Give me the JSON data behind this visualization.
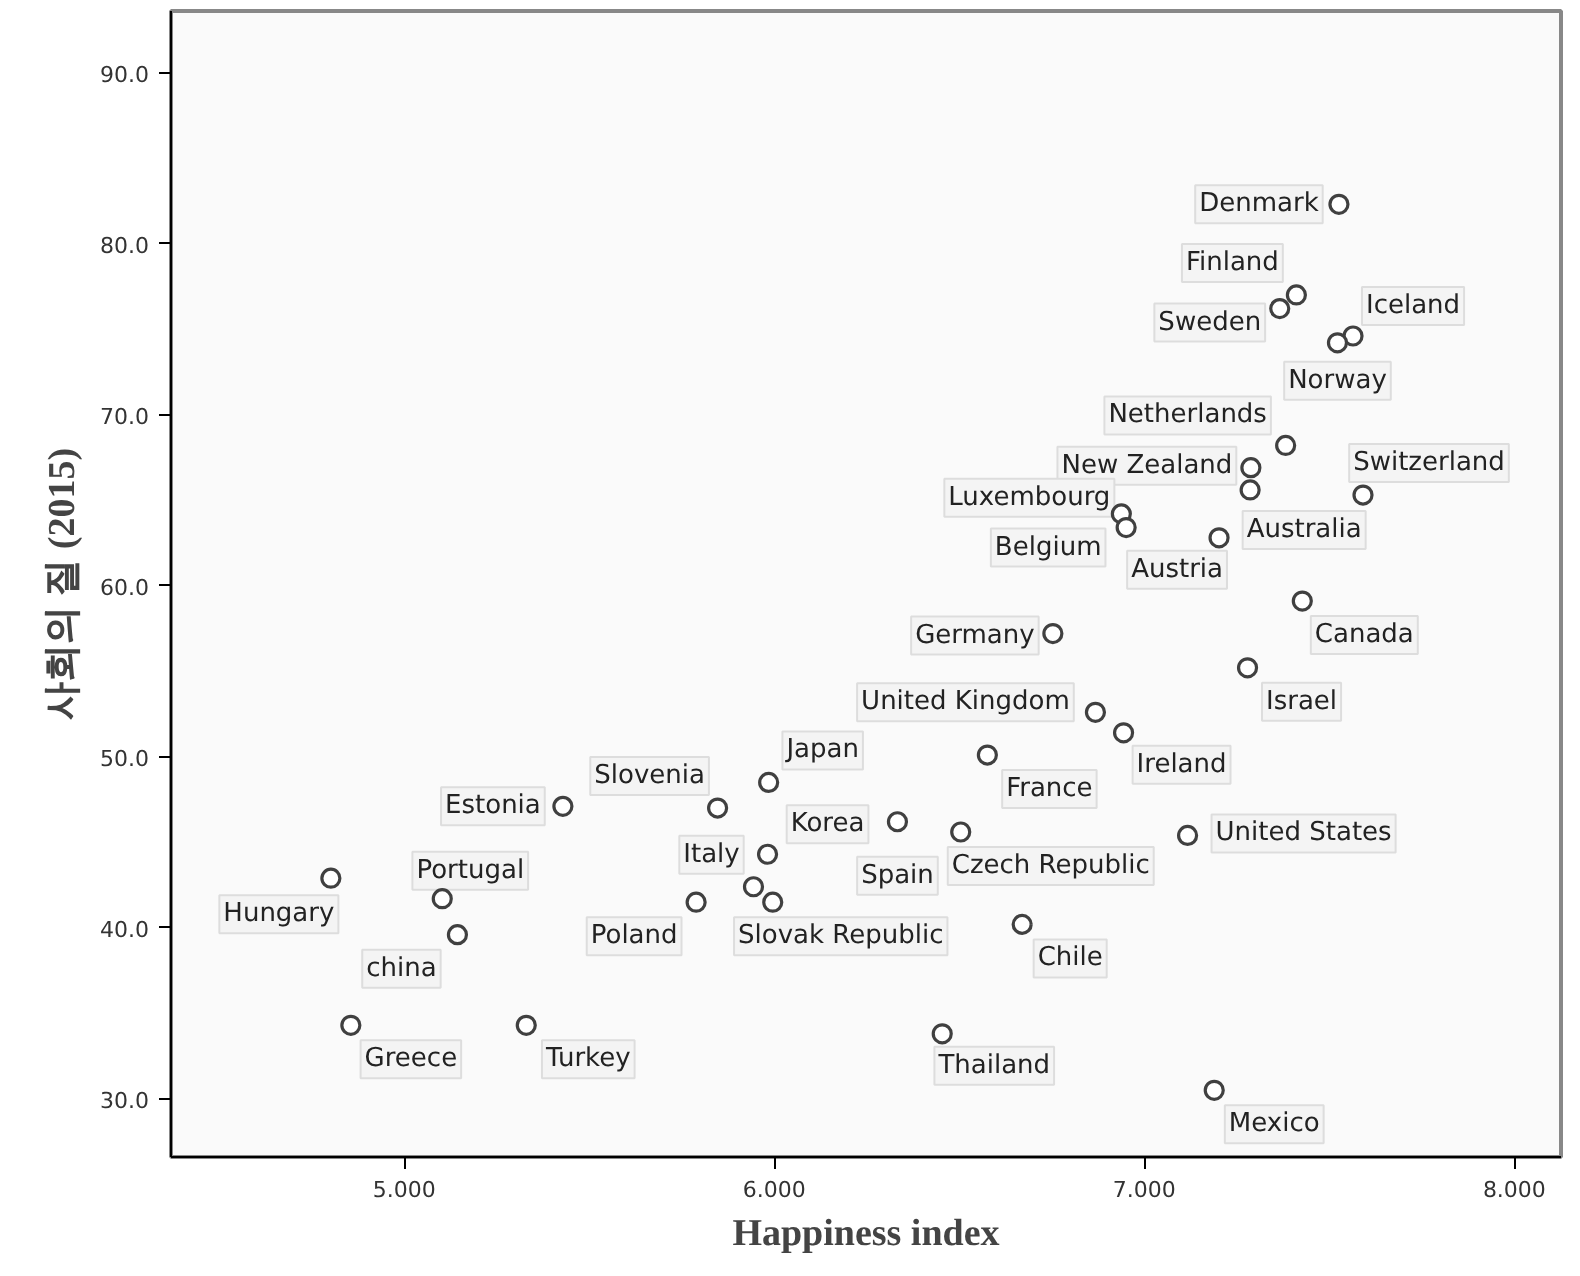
{
  "chart_data": {
    "type": "scatter",
    "xlabel": "Happiness index",
    "ylabel": "사회의 질 (2015)",
    "xlim": [
      4.37,
      8.126
    ],
    "ylim": [
      26.6,
      93.6
    ],
    "xticks": [
      {
        "value": 5,
        "label": "5.000"
      },
      {
        "value": 6,
        "label": "6.000"
      },
      {
        "value": 7,
        "label": "7.000"
      },
      {
        "value": 8,
        "label": "8.000"
      }
    ],
    "yticks": [
      {
        "value": 30,
        "label": "30.0"
      },
      {
        "value": 40,
        "label": "40.0"
      },
      {
        "value": 50,
        "label": "50.0"
      },
      {
        "value": 60,
        "label": "60.0"
      },
      {
        "value": 70,
        "label": "70.0"
      },
      {
        "value": 80,
        "label": "80.0"
      },
      {
        "value": 90,
        "label": "90.0"
      }
    ],
    "grid": false,
    "marker": "circle",
    "series": [
      {
        "color": "#404040",
        "x": [
          7.526,
          7.411,
          7.366,
          7.564,
          7.522,
          7.382,
          7.288,
          7.286,
          7.591,
          6.938,
          6.951,
          7.202,
          7.427,
          6.753,
          7.279,
          6.868,
          6.944,
          6.576,
          6.333,
          6.504,
          7.117,
          6.67,
          6.454,
          7.189,
          5.985,
          5.847,
          5.429,
          5.982,
          5.944,
          5.996,
          5.789,
          4.802,
          5.103,
          5.144,
          4.856,
          5.33
        ],
        "values": [
          82.3,
          77.0,
          76.2,
          74.6,
          74.2,
          68.2,
          66.9,
          65.6,
          65.3,
          64.2,
          63.4,
          62.8,
          59.1,
          57.2,
          55.2,
          52.6,
          51.4,
          50.1,
          46.2,
          45.6,
          45.4,
          40.2,
          33.8,
          30.5,
          48.5,
          47.0,
          47.1,
          44.3,
          42.4,
          41.5,
          41.5,
          42.9,
          41.7,
          39.6,
          34.3,
          34.3
        ],
        "value_labels": [
          "Denmark",
          "Finland",
          "Sweden",
          "Iceland",
          "Norway",
          "Netherlands",
          "New Zealand",
          "Australia",
          "Switzerland",
          "Luxembourg",
          "Belgium",
          "Austria",
          "Canada",
          "Germany",
          "Israel",
          "United Kingdom",
          "Ireland",
          "France",
          "Spain",
          "Czech Republic",
          "United States",
          "Chile",
          "Thailand",
          "Mexico",
          "Japan",
          "Slovenia",
          "Estonia",
          "Korea",
          "Italy",
          "Slovak Republic",
          "Poland",
          "Hungary",
          "Portugal",
          "china",
          "Greece",
          "Turkey"
        ]
      }
    ]
  }
}
